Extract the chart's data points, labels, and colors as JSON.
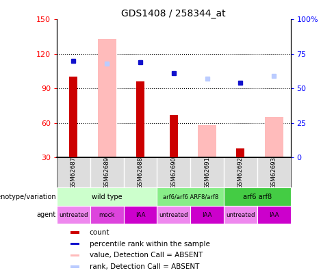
{
  "title": "GDS1408 / 258344_at",
  "samples": [
    "GSM62687",
    "GSM62689",
    "GSM62688",
    "GSM62690",
    "GSM62691",
    "GSM62692",
    "GSM62693"
  ],
  "count_values": [
    100,
    null,
    96,
    67,
    null,
    38,
    null
  ],
  "rank_values": [
    70,
    null,
    69,
    61,
    null,
    54,
    null
  ],
  "absent_value": [
    null,
    133,
    null,
    null,
    58,
    null,
    65
  ],
  "absent_rank": [
    null,
    68,
    null,
    null,
    57,
    null,
    59
  ],
  "ylim_left": [
    30,
    150
  ],
  "ylim_right": [
    0,
    100
  ],
  "yticks_left": [
    30,
    60,
    90,
    120,
    150
  ],
  "yticks_right": [
    0,
    25,
    50,
    75,
    100
  ],
  "yticklabels_right": [
    "0",
    "25",
    "50",
    "75",
    "100%"
  ],
  "color_count": "#cc0000",
  "color_rank": "#1111cc",
  "color_absent_value": "#ffbbbb",
  "color_absent_rank": "#bbccff",
  "geno_groups": [
    {
      "label": "wild type",
      "start": 0,
      "end": 2,
      "color": "#ccffcc"
    },
    {
      "label": "arf6/arf6 ARF8/arf8",
      "start": 3,
      "end": 4,
      "color": "#88ee88"
    },
    {
      "label": "arf6 arf8",
      "start": 5,
      "end": 6,
      "color": "#44cc44"
    }
  ],
  "agent_groups": [
    {
      "label": "untreated",
      "start": 0,
      "end": 0,
      "color": "#ee88ee"
    },
    {
      "label": "mock",
      "start": 1,
      "end": 1,
      "color": "#dd44dd"
    },
    {
      "label": "IAA",
      "start": 2,
      "end": 2,
      "color": "#cc00cc"
    },
    {
      "label": "untreated",
      "start": 3,
      "end": 3,
      "color": "#ee88ee"
    },
    {
      "label": "IAA",
      "start": 4,
      "end": 4,
      "color": "#cc00cc"
    },
    {
      "label": "untreated",
      "start": 5,
      "end": 5,
      "color": "#ee88ee"
    },
    {
      "label": "IAA",
      "start": 6,
      "end": 6,
      "color": "#cc00cc"
    }
  ],
  "legend_items": [
    {
      "label": "count",
      "color": "#cc0000"
    },
    {
      "label": "percentile rank within the sample",
      "color": "#1111cc"
    },
    {
      "label": "value, Detection Call = ABSENT",
      "color": "#ffbbbb"
    },
    {
      "label": "rank, Detection Call = ABSENT",
      "color": "#bbccff"
    }
  ]
}
